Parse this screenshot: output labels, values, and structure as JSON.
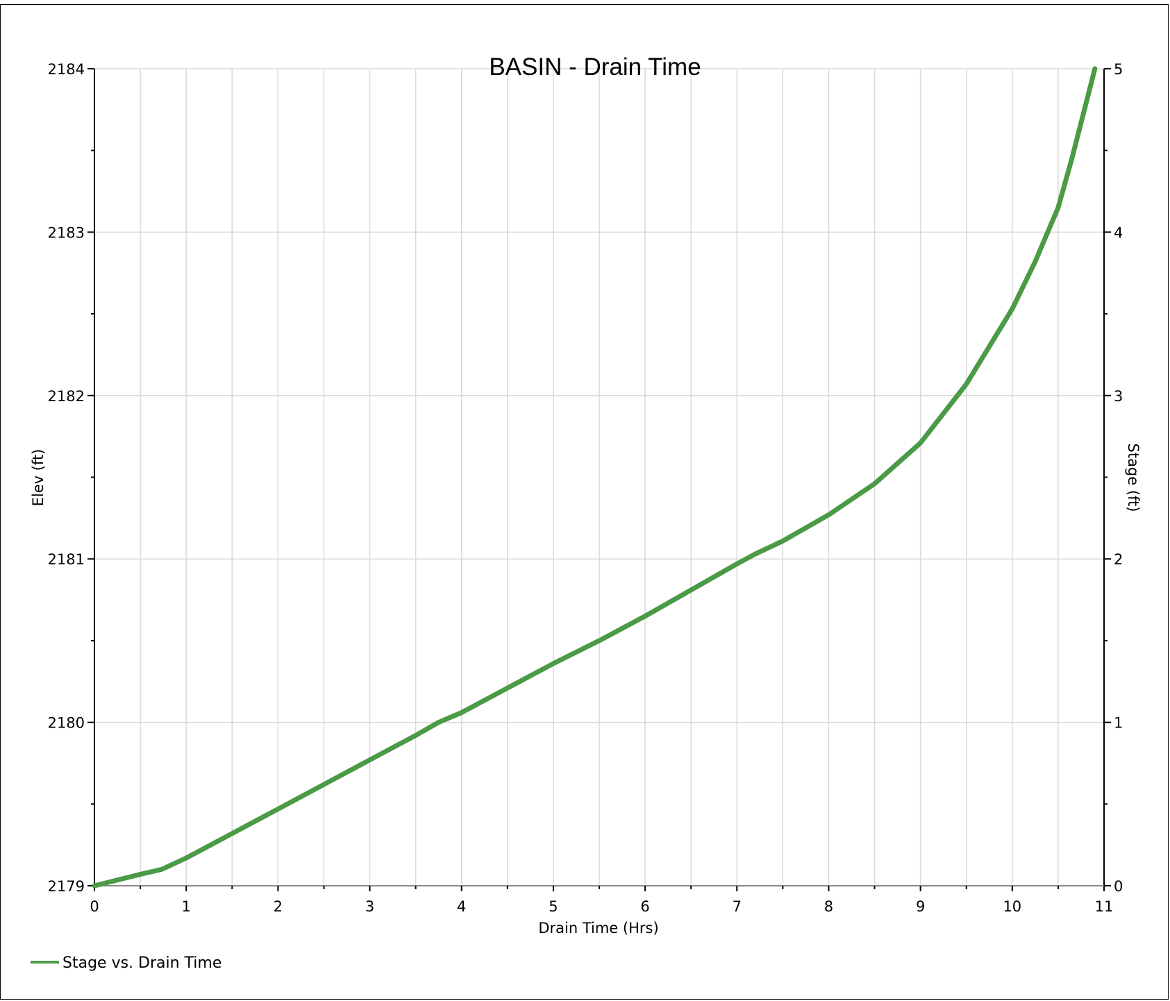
{
  "chart_data": {
    "type": "line",
    "title": "BASIN - Drain Time",
    "xlabel": "Drain Time (Hrs)",
    "ylabel_left": "Elev (ft)",
    "ylabel_right": "Stage (ft)",
    "xlim": [
      0,
      11
    ],
    "ylim_left": [
      2179,
      2184
    ],
    "ylim_right": [
      0,
      5
    ],
    "x_ticks": [
      "0",
      "1",
      "2",
      "3",
      "4",
      "5",
      "6",
      "7",
      "8",
      "9",
      "10",
      "11"
    ],
    "y_left_ticks": [
      "2179",
      "2180",
      "2181",
      "2182",
      "2183",
      "2184"
    ],
    "y_right_ticks": [
      "0",
      "1",
      "2",
      "3",
      "4",
      "5"
    ],
    "grid": true,
    "legend_position": "bottom-left",
    "series": [
      {
        "name": "Stage vs. Drain Time",
        "color": "#4a9a46",
        "axis": "right",
        "x": [
          0.0,
          0.5,
          0.73,
          1.0,
          1.5,
          2.0,
          2.5,
          3.0,
          3.5,
          3.75,
          4.0,
          4.5,
          5.0,
          5.5,
          6.0,
          6.5,
          7.0,
          7.2,
          7.5,
          8.0,
          8.5,
          9.0,
          9.5,
          10.0,
          10.25,
          10.5,
          10.65,
          10.8,
          10.9
        ],
        "y": [
          0.0,
          0.07,
          0.1,
          0.17,
          0.32,
          0.47,
          0.62,
          0.77,
          0.92,
          1.0,
          1.06,
          1.21,
          1.36,
          1.5,
          1.65,
          1.81,
          1.97,
          2.03,
          2.11,
          2.27,
          2.46,
          2.71,
          3.07,
          3.53,
          3.82,
          4.15,
          4.45,
          4.78,
          5.0
        ]
      }
    ]
  }
}
